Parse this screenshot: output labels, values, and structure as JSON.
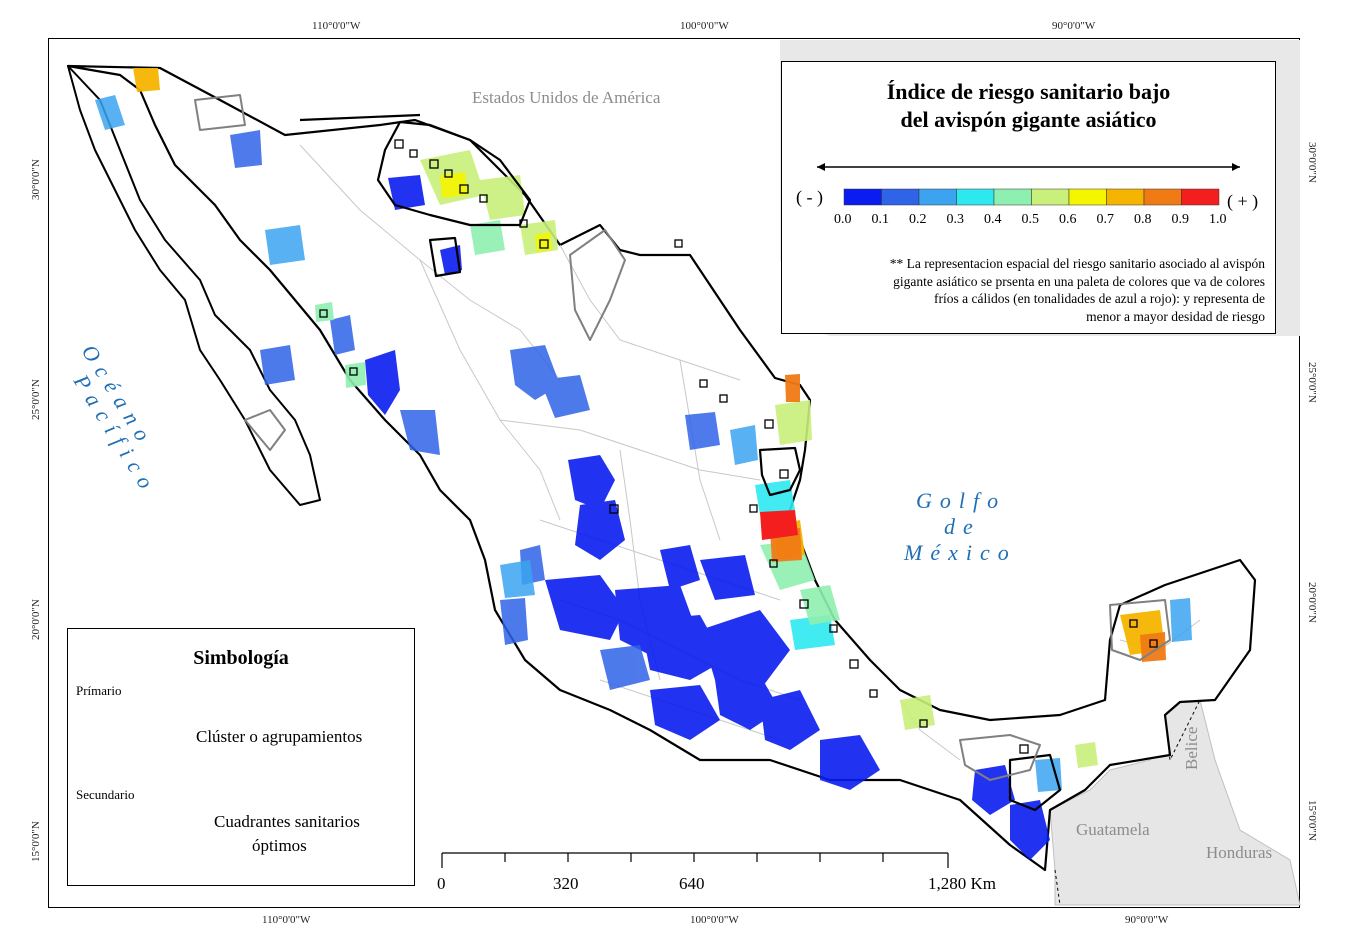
{
  "coordinates": {
    "top": [
      "110°0'0\"W",
      "100°0'0\"W",
      "90°0'0\"W"
    ],
    "bottom": [
      "110°0'0\"W",
      "100°0'0\"W",
      "90°0'0\"W"
    ],
    "left": [
      "30°0'0\"N",
      "25°0'0\"N",
      "20°0'0\"N",
      "15°0'0\"N"
    ],
    "right": [
      "30°0'0\"N",
      "25°0'0\"N",
      "20°0'0\"N",
      "15°0'0\"N"
    ]
  },
  "labels": {
    "usa": "Estados Unidos de América",
    "guatemala": "Guatamela",
    "belice": "Belice",
    "honduras": "Honduras",
    "pacific_line1": "Océano",
    "pacific_line2": "Pacífico",
    "gulf_line1": "Golfo",
    "gulf_line2": "de",
    "gulf_line3": "México"
  },
  "legend": {
    "title_line1": "Índice de riesgo sanitario bajo",
    "title_line2": "del avispón gigante asiático",
    "minus": "( - )",
    "plus": "( + )",
    "ticks": [
      "0.0",
      "0.1",
      "0.2",
      "0.3",
      "0.4",
      "0.5",
      "0.6",
      "0.7",
      "0.8",
      "0.9",
      "1.0"
    ],
    "colors": [
      "#0a1cf0",
      "#2f63e8",
      "#3ba3f0",
      "#2ee8f0",
      "#8ef0b0",
      "#c8f07a",
      "#f5f500",
      "#f5b400",
      "#f07a14",
      "#f51e1e"
    ],
    "note_line1": "** La representacion espacial del riesgo sanitario asociado al avispón",
    "note_line2": "gigante asiático se prsenta en una paleta de colores que va de colores",
    "note_line3": "fríos a cálidos (en tonalidades de azul a rojo): y representa de",
    "note_line4": "menor a mayor desidad de riesgo"
  },
  "simbologia": {
    "title": "Simbología",
    "primario": "Prímario",
    "secundario": "Secundario",
    "cluster": "Clúster o agrupamientos",
    "cuadrantes_line1": "Cuadrantes sanitarios",
    "cuadrantes_line2": "óptimos"
  },
  "scale": {
    "labels": [
      "0",
      "320",
      "640",
      "1,280 Km"
    ]
  },
  "map_colors": {
    "land": "#ffffff",
    "neighbor": "#e6e6e6",
    "border": "#000000",
    "state_line": "#c8c8c8",
    "cluster_secondary": "#808080"
  }
}
